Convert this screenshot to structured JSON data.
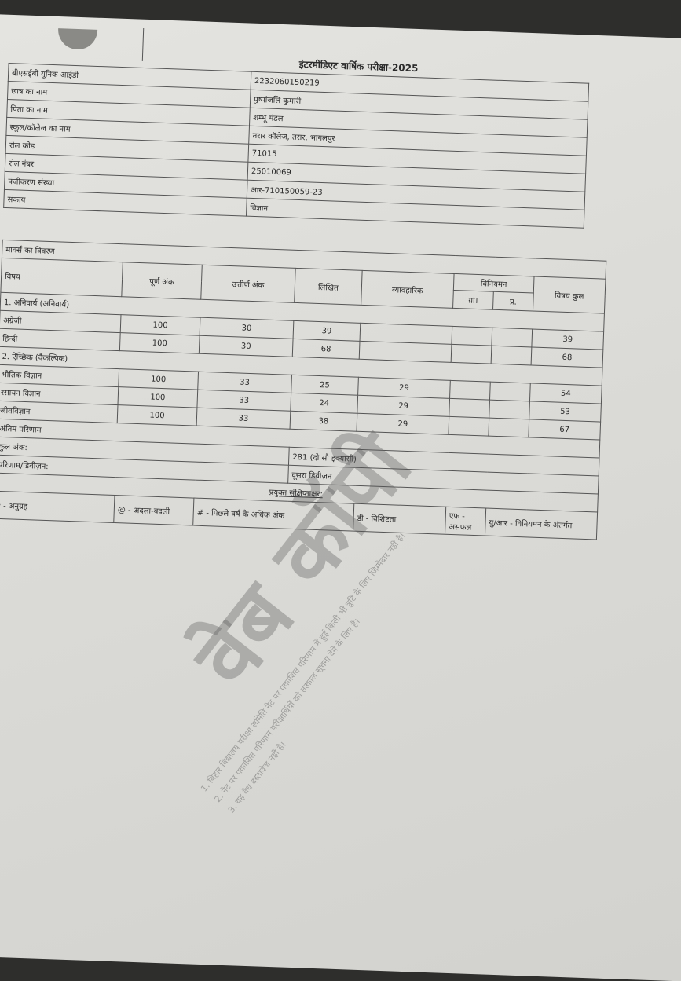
{
  "header": {
    "title": "इंटरमीडिएट वार्षिक परीक्षा-2025"
  },
  "info": [
    {
      "label": "बीएसईबी यूनिक आईडी",
      "value": "2232060150219"
    },
    {
      "label": "छात्र का नाम",
      "value": "पुष्पांजलि कुमारी"
    },
    {
      "label": "पिता का नाम",
      "value": "शम्भू मंडल"
    },
    {
      "label": "स्कूल/कॉलेज का नाम",
      "value": "तरार कॉलेज, तरार, भागलपुर"
    },
    {
      "label": "रोल कोड",
      "value": "71015"
    },
    {
      "label": "रोल नंबर",
      "value": "25010069"
    },
    {
      "label": "पंजीकरण संख्या",
      "value": "आर-710150059-23"
    },
    {
      "label": "संकाय",
      "value": "विज्ञान"
    }
  ],
  "marks": {
    "section_title": "मार्क्स का विवरण",
    "headers": {
      "subject": "विषय",
      "full": "पूर्ण अंक",
      "pass": "उत्तीर्ण अंक",
      "theory": "लिखित",
      "practical": "व्यावहारिक",
      "regulation": "विनियमन",
      "reg_a": "ग्रां।",
      "reg_b": "प्र.",
      "total": "विषय कुल"
    },
    "groups": [
      {
        "title": "1. अनिवार्य (अनिवार्य)",
        "rows": [
          {
            "subject": "अंग्रेजी",
            "full": "100",
            "pass": "30",
            "theory": "39",
            "practical": "",
            "reg_a": "",
            "reg_b": "",
            "total": "39"
          },
          {
            "subject": "हिन्दी",
            "full": "100",
            "pass": "30",
            "theory": "68",
            "practical": "",
            "reg_a": "",
            "reg_b": "",
            "total": "68"
          }
        ]
      },
      {
        "title": "2. ऐच्छिक (वैकल्पिक)",
        "rows": [
          {
            "subject": "भौतिक विज्ञान",
            "full": "100",
            "pass": "33",
            "theory": "25",
            "practical": "29",
            "reg_a": "",
            "reg_b": "",
            "total": "54"
          },
          {
            "subject": "रसायन विज्ञान",
            "full": "100",
            "pass": "33",
            "theory": "24",
            "practical": "29",
            "reg_a": "",
            "reg_b": "",
            "total": "53"
          },
          {
            "subject": "जीवविज्ञान",
            "full": "100",
            "pass": "33",
            "theory": "38",
            "practical": "29",
            "reg_a": "",
            "reg_b": "",
            "total": "67"
          }
        ]
      }
    ]
  },
  "result": {
    "title": "अंतिम परिणाम",
    "total_label": "कुल अंक:",
    "total_value": "281 (दो सौ इक्यासी)",
    "division_label": "परिणाम/डिवीज़न:",
    "division_value": "दूसरा डिवीज़न"
  },
  "abbreviations": {
    "title": "प्रयुक्त संक्षिप्ताक्षर:",
    "items": [
      "* - अनुग्रह",
      "@ - अदला-बदली",
      "# - पिछले वर्ष के अधिक अंक",
      "डी - विशिष्टता",
      "एफ - असफल",
      "यु/आर - विनियमन के अंतर्गत"
    ]
  },
  "watermark": "वेब कॉपी",
  "disclaimer": [
    "1. बिहार विद्यालय परीक्षा समिति नेट पर प्रकाशित परिणाम में हुई किसी भी त्रुटि के लिए जिम्मेदार नहीं है।",
    "2. नेट पर प्रकाशित परिणाम परीक्षार्थियों को तत्काल सूचना देने के लिए है।",
    "3. यह वैध दस्तावेज नहीं है।"
  ]
}
